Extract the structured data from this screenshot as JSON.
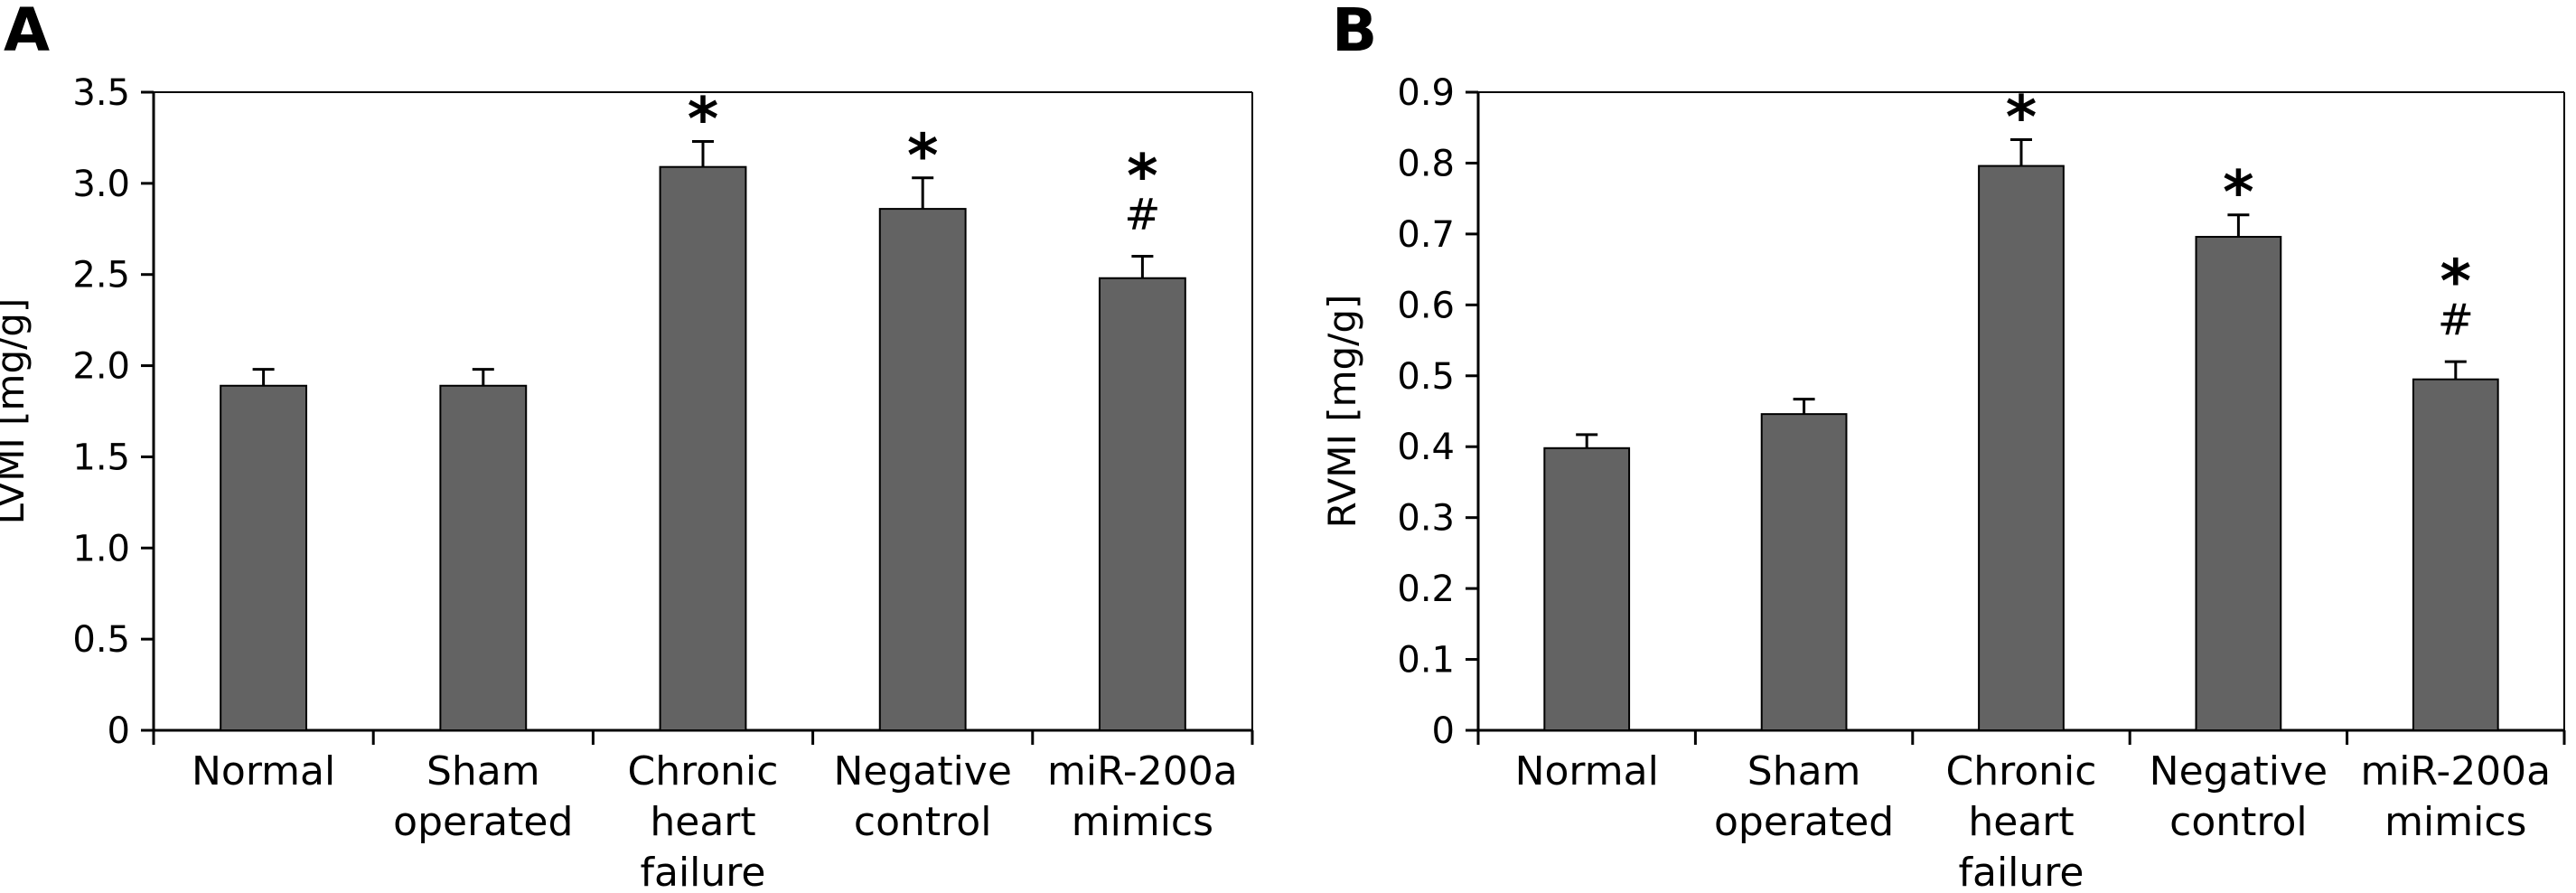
{
  "colors": {
    "bar": "#636363",
    "axis": "#000000",
    "background": "#ffffff"
  },
  "chart_data": [
    {
      "panel_label": "A",
      "type": "bar",
      "ylabel": "LVMI [mg/g]",
      "ylim": [
        0,
        3.5
      ],
      "yticks": [
        "0",
        "0.5",
        "1.0",
        "1.5",
        "2.0",
        "2.5",
        "3.0",
        "3.5"
      ],
      "categories": [
        [
          "Normal"
        ],
        [
          "Sham",
          "operated"
        ],
        [
          "Chronic",
          "heart",
          "failure"
        ],
        [
          "Negative",
          "control"
        ],
        [
          "miR-200a",
          "mimics"
        ]
      ],
      "values": [
        1.89,
        1.89,
        3.09,
        2.86,
        2.48
      ],
      "errors": [
        0.09,
        0.09,
        0.14,
        0.17,
        0.12
      ],
      "annotations": [
        [],
        [],
        [
          "*"
        ],
        [
          "*"
        ],
        [
          "*",
          "#"
        ]
      ],
      "grid": false,
      "legend": "none"
    },
    {
      "panel_label": "B",
      "type": "bar",
      "ylabel": "RVMI [mg/g]",
      "ylim": [
        0,
        0.9
      ],
      "yticks": [
        "0",
        "0.1",
        "0.2",
        "0.3",
        "0.4",
        "0.5",
        "0.6",
        "0.7",
        "0.8",
        "0.9"
      ],
      "categories": [
        [
          "Normal"
        ],
        [
          "Sham",
          "operated"
        ],
        [
          "Chronic",
          "heart",
          "failure"
        ],
        [
          "Negative",
          "control"
        ],
        [
          "miR-200a",
          "mimics"
        ]
      ],
      "values": [
        0.398,
        0.446,
        0.796,
        0.696,
        0.495
      ],
      "errors": [
        0.019,
        0.021,
        0.037,
        0.031,
        0.025
      ],
      "annotations": [
        [],
        [],
        [
          "*"
        ],
        [
          "*"
        ],
        [
          "*",
          "#"
        ]
      ],
      "grid": false,
      "legend": "none"
    }
  ]
}
